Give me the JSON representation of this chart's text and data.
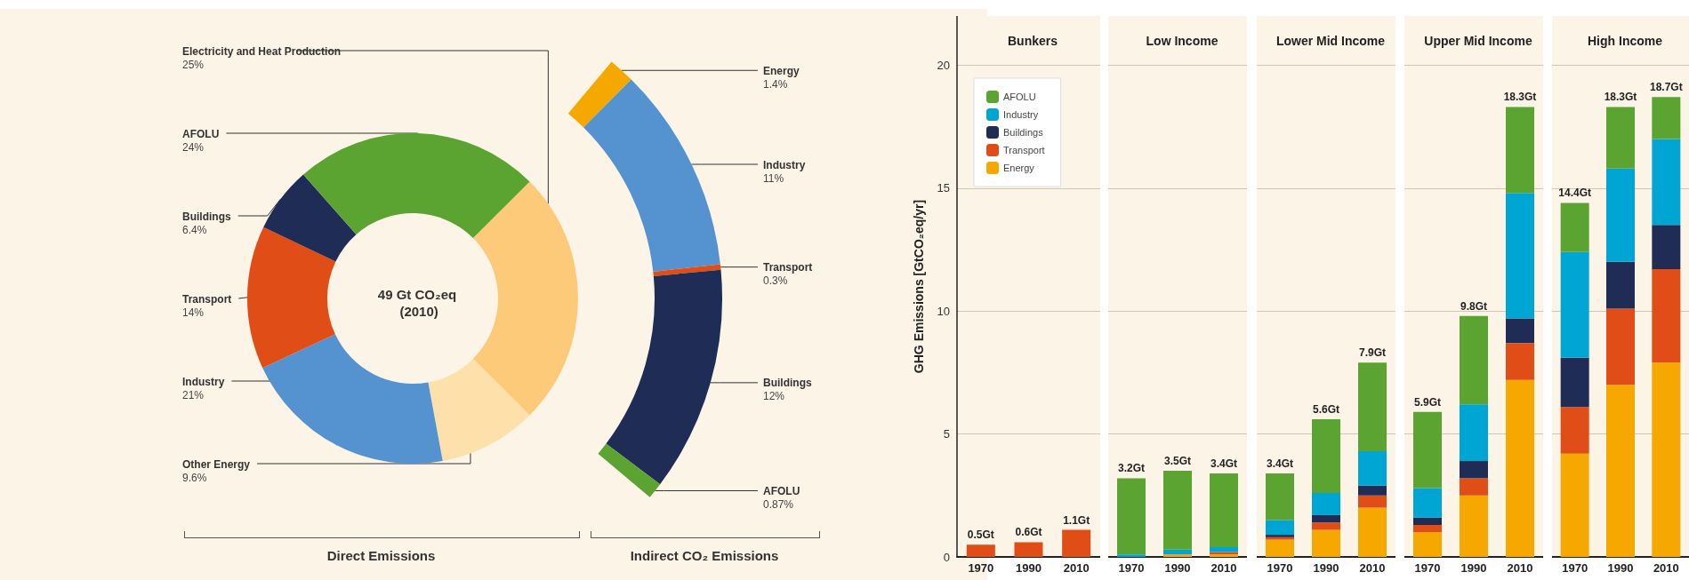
{
  "chart_data": [
    {
      "type": "donut",
      "title": "49 Gt CO₂eq (2010)",
      "categories": [
        "Electricity and Heat Production",
        "Other Energy",
        "Industry",
        "Transport",
        "Buildings",
        "AFOLU"
      ],
      "values": [
        25,
        9.6,
        21,
        14,
        6.4,
        24
      ],
      "value_labels": [
        "25%",
        "9.6%",
        "21%",
        "14%",
        "6.4%",
        "24%"
      ],
      "colors": [
        "#fdca7a",
        "#fde0aa",
        "#5592d0",
        "#e04d17",
        "#1f2d56",
        "#5ba431"
      ],
      "annotations": [
        "Direct Emissions"
      ]
    },
    {
      "type": "donut",
      "categories": [
        "Energy",
        "Industry",
        "Transport",
        "Buildings",
        "AFOLU"
      ],
      "values": [
        1.4,
        11,
        0.3,
        12,
        0.87
      ],
      "value_labels": [
        "1.4%",
        "11%",
        "0.3%",
        "12%",
        "0.87%"
      ],
      "colors": [
        "#f5a800",
        "#5592d0",
        "#e04d17",
        "#1f2d56",
        "#5ba431"
      ],
      "annotations": [
        "Indirect CO₂ Emissions"
      ]
    },
    {
      "type": "bar",
      "title": "Bunkers",
      "ylabel": "GHG Emissions [GtCO₂eq/yr]",
      "categories": [
        "1970",
        "1990",
        "2010"
      ],
      "stacked": true,
      "legend": "top left",
      "grid": "y",
      "ylim": [
        0,
        22
      ],
      "yticks": [
        0,
        5,
        10,
        15,
        20
      ],
      "totals": [
        "0.5Gt",
        "0.6Gt",
        "1.1Gt"
      ],
      "series": [
        {
          "name": "Energy",
          "color": "#f6a800",
          "values": [
            0,
            0,
            0
          ]
        },
        {
          "name": "Transport",
          "color": "#e04d17",
          "values": [
            0.5,
            0.6,
            1.1
          ]
        },
        {
          "name": "Buildings",
          "color": "#1f2d56",
          "values": [
            0,
            0,
            0
          ]
        },
        {
          "name": "Industry",
          "color": "#00a6d3",
          "values": [
            0,
            0,
            0
          ]
        },
        {
          "name": "AFOLU",
          "color": "#5ba431",
          "values": [
            0,
            0,
            0
          ]
        }
      ]
    },
    {
      "type": "bar",
      "title": "Low Income",
      "categories": [
        "1970",
        "1990",
        "2010"
      ],
      "stacked": true,
      "grid": "y",
      "tick_labels": "x",
      "ylim": [
        0,
        22
      ],
      "yticks": [
        0,
        5,
        10,
        15,
        20
      ],
      "totals": [
        "3.2Gt",
        "3.5Gt",
        "3.4Gt"
      ],
      "series": [
        {
          "color": "#f6a800",
          "values": [
            0,
            0.1,
            0.1
          ]
        },
        {
          "color": "#e04d17",
          "values": [
            0,
            0,
            0.1
          ]
        },
        {
          "color": "#1f2d56",
          "values": [
            0,
            0,
            0
          ]
        },
        {
          "color": "#00a6d3",
          "values": [
            0.1,
            0.2,
            0.2
          ]
        },
        {
          "color": "#5ba431",
          "values": [
            3.1,
            3.2,
            3.0
          ]
        }
      ]
    },
    {
      "type": "bar",
      "title": "Lower Mid Income",
      "categories": [
        "1970",
        "1990",
        "2010"
      ],
      "stacked": true,
      "grid": "y",
      "tick_labels": "x",
      "ylim": [
        0,
        22
      ],
      "yticks": [
        0,
        5,
        10,
        15,
        20
      ],
      "totals": [
        "3.4Gt",
        "5.6Gt",
        "7.9Gt"
      ],
      "series": [
        {
          "color": "#f6a800",
          "values": [
            0.7,
            1.1,
            2.0
          ]
        },
        {
          "color": "#e04d17",
          "values": [
            0.1,
            0.3,
            0.5
          ]
        },
        {
          "color": "#1f2d56",
          "values": [
            0.1,
            0.3,
            0.4
          ]
        },
        {
          "color": "#00a6d3",
          "values": [
            0.6,
            0.9,
            1.4
          ]
        },
        {
          "color": "#5ba431",
          "values": [
            1.9,
            3.0,
            3.6
          ]
        }
      ]
    },
    {
      "type": "bar",
      "title": "Upper Mid Income",
      "categories": [
        "1970",
        "1990",
        "2010"
      ],
      "stacked": true,
      "grid": "y",
      "tick_labels": "x",
      "ylim": [
        0,
        22
      ],
      "yticks": [
        0,
        5,
        10,
        15,
        20
      ],
      "totals": [
        "5.9Gt",
        "9.8Gt",
        "18.3Gt"
      ],
      "series": [
        {
          "color": "#f6a800",
          "values": [
            1.0,
            2.5,
            7.2
          ]
        },
        {
          "color": "#e04d17",
          "values": [
            0.3,
            0.7,
            1.5
          ]
        },
        {
          "color": "#1f2d56",
          "values": [
            0.3,
            0.7,
            1.0
          ]
        },
        {
          "color": "#00a6d3",
          "values": [
            1.2,
            2.3,
            5.1
          ]
        },
        {
          "color": "#5ba431",
          "values": [
            3.1,
            3.6,
            3.5
          ]
        }
      ]
    },
    {
      "type": "bar",
      "title": "High Income",
      "categories": [
        "1970",
        "1990",
        "2010"
      ],
      "stacked": true,
      "grid": "y",
      "tick_labels": "x",
      "ylim": [
        0,
        22
      ],
      "yticks": [
        0,
        5,
        10,
        15,
        20
      ],
      "totals": [
        "14.4Gt",
        "18.3Gt",
        "18.7Gt"
      ],
      "series": [
        {
          "color": "#f6a800",
          "values": [
            4.2,
            7.0,
            7.9
          ]
        },
        {
          "color": "#e04d17",
          "values": [
            1.9,
            3.1,
            3.8
          ]
        },
        {
          "color": "#1f2d56",
          "values": [
            2.0,
            1.9,
            1.8
          ]
        },
        {
          "color": "#00a6d3",
          "values": [
            4.3,
            3.8,
            3.5
          ]
        },
        {
          "color": "#5ba431",
          "values": [
            2.0,
            2.5,
            1.7
          ]
        }
      ]
    }
  ]
}
